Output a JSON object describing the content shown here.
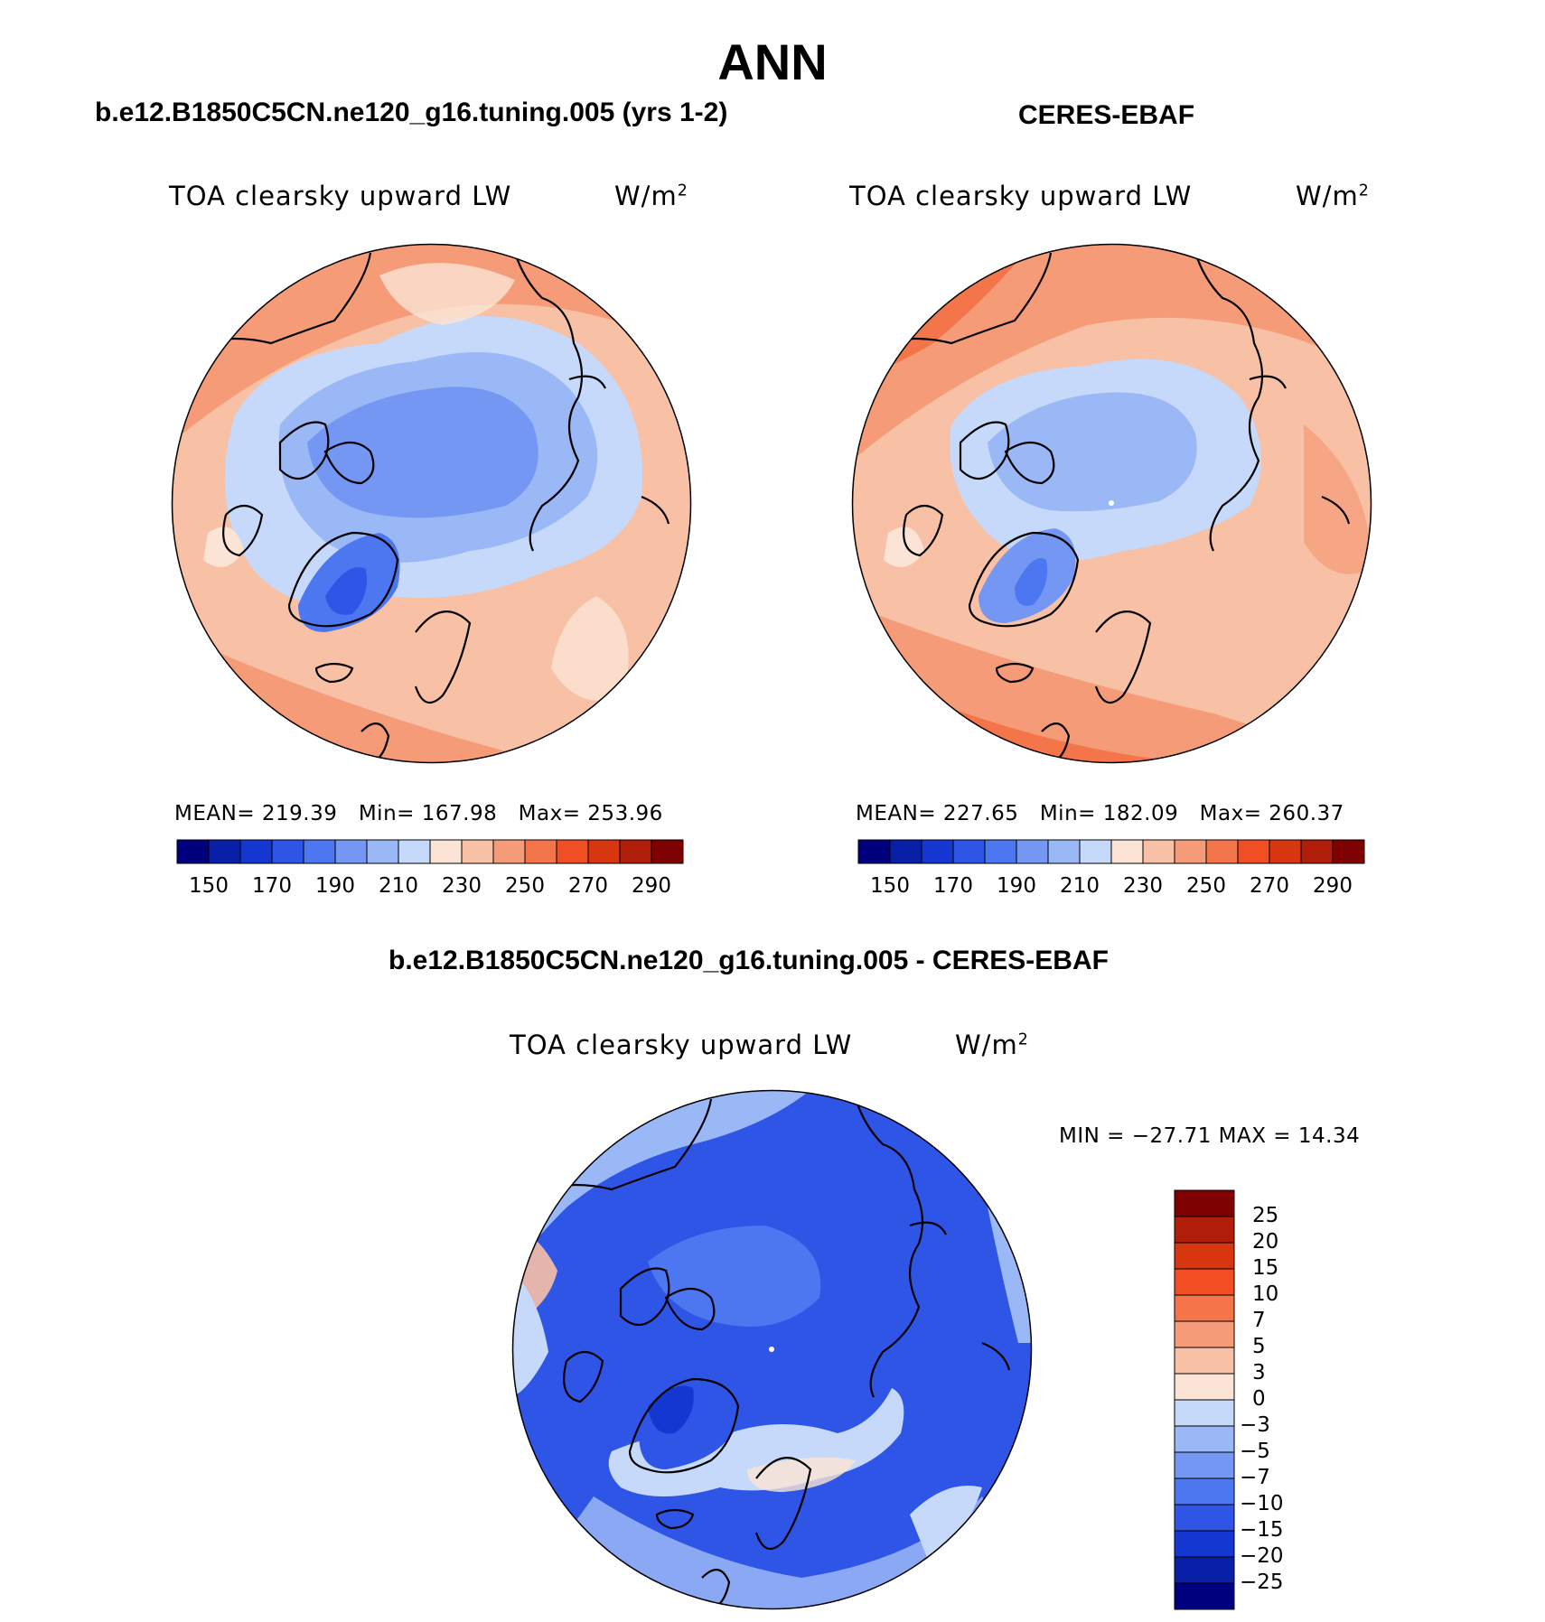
{
  "title": "ANN",
  "panels": [
    {
      "case_title": "b.e12.B1850C5CN.ne120_g16.tuning.005 (yrs 1-2)",
      "variable": "TOA clearsky upward LW",
      "units": "W/m",
      "units_exp": "2",
      "stats": {
        "mean_label": "MEAN=",
        "mean": "219.39",
        "min_label": "Min=",
        "min": "167.98",
        "max_label": "Max=",
        "max": "253.96"
      }
    },
    {
      "case_title": "CERES-EBAF",
      "variable": "TOA clearsky upward LW",
      "units": "W/m",
      "units_exp": "2",
      "stats": {
        "mean_label": "MEAN=",
        "mean": "227.65",
        "min_label": "Min=",
        "min": "182.09",
        "max_label": "Max=",
        "max": "260.37"
      }
    }
  ],
  "abs_colorbar": {
    "ticks": [
      "150",
      "170",
      "190",
      "210",
      "230",
      "250",
      "270",
      "290"
    ],
    "colors": [
      "#00007f",
      "#0a1fa8",
      "#1437d2",
      "#2e55e6",
      "#4d77f0",
      "#7497f3",
      "#9ab7f6",
      "#c6d9fa",
      "#fbe3d5",
      "#f8c0a5",
      "#f59b78",
      "#f4754a",
      "#f14e23",
      "#d8360f",
      "#b01e0a",
      "#7f0000"
    ]
  },
  "diff_panel": {
    "case_title": "b.e12.B1850C5CN.ne120_g16.tuning.005 - CERES-EBAF",
    "variable": "TOA clearsky upward LW",
    "units": "W/m",
    "units_exp": "2",
    "minmax": "MIN = −27.71 MAX =  14.34"
  },
  "diff_colorbar": {
    "ticks": [
      "25",
      "20",
      "15",
      "10",
      "7",
      "5",
      "3",
      "0",
      "−3",
      "−5",
      "−7",
      "−10",
      "−15",
      "−20",
      "−25"
    ],
    "colors": [
      "#7f0000",
      "#b01e0a",
      "#d8360f",
      "#f14e23",
      "#f4754a",
      "#f59b78",
      "#f8c0a5",
      "#fbe3d5",
      "#c6d9fa",
      "#9ab7f6",
      "#7497f3",
      "#4d77f0",
      "#2e55e6",
      "#1437d2",
      "#0a1fa8",
      "#00007f"
    ]
  },
  "map_colors": {
    "ocean_warm": "#f59b78",
    "ocean_warm2": "#f4754a",
    "pale_warm": "#fbe3d5",
    "mid_blue": "#9ab7f6",
    "blue": "#7497f3",
    "deep_blue": "#4d77f0",
    "diff_base": "#2e55e6",
    "diff_light": "#9ab7f6",
    "diff_pale": "#c6d9fa",
    "coast": "#000000"
  }
}
